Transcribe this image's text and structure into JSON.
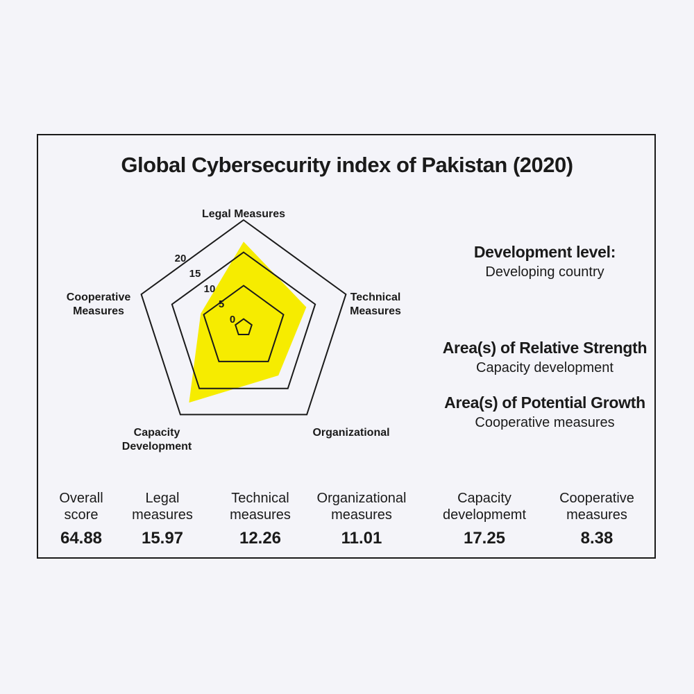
{
  "title": "Global Cybersecurity index of Pakistan (2020)",
  "chart_data": {
    "type": "radar",
    "title": "Global Cybersecurity index of Pakistan (2020)",
    "axes": [
      {
        "line1": "Legal Measures",
        "line2": ""
      },
      {
        "line1": "Technical",
        "line2": "Measures"
      },
      {
        "line1": "Organizational",
        "line2": ""
      },
      {
        "line1": "Capacity",
        "line2": "Development"
      },
      {
        "line1": "Cooperative",
        "line2": "Measures"
      }
    ],
    "values": [
      15.97,
      12.26,
      11.01,
      17.25,
      8.38
    ],
    "range": [
      0,
      20
    ],
    "ticks": [
      "0",
      "5",
      "10",
      "15",
      "20"
    ],
    "fill_color": "#f6ec00"
  },
  "side": {
    "development_head": "Development level:",
    "development_value": "Developing country",
    "strength_head": "Area(s) of Relative Strength",
    "strength_value": "Capacity development",
    "growth_head": "Area(s) of Potential Growth",
    "growth_value": "Cooperative measures"
  },
  "stats": [
    {
      "line1": "Overall",
      "line2": "score",
      "value": "64.88"
    },
    {
      "line1": "Legal",
      "line2": "measures",
      "value": "15.97"
    },
    {
      "line1": "Technical",
      "line2": "measures",
      "value": "12.26"
    },
    {
      "line1": "Organizational",
      "line2": "measures",
      "value": "11.01"
    },
    {
      "line1": "Capacity",
      "line2": "developmemt",
      "value": "17.25"
    },
    {
      "line1": "Cooperative",
      "line2": "measures",
      "value": "8.38"
    }
  ]
}
